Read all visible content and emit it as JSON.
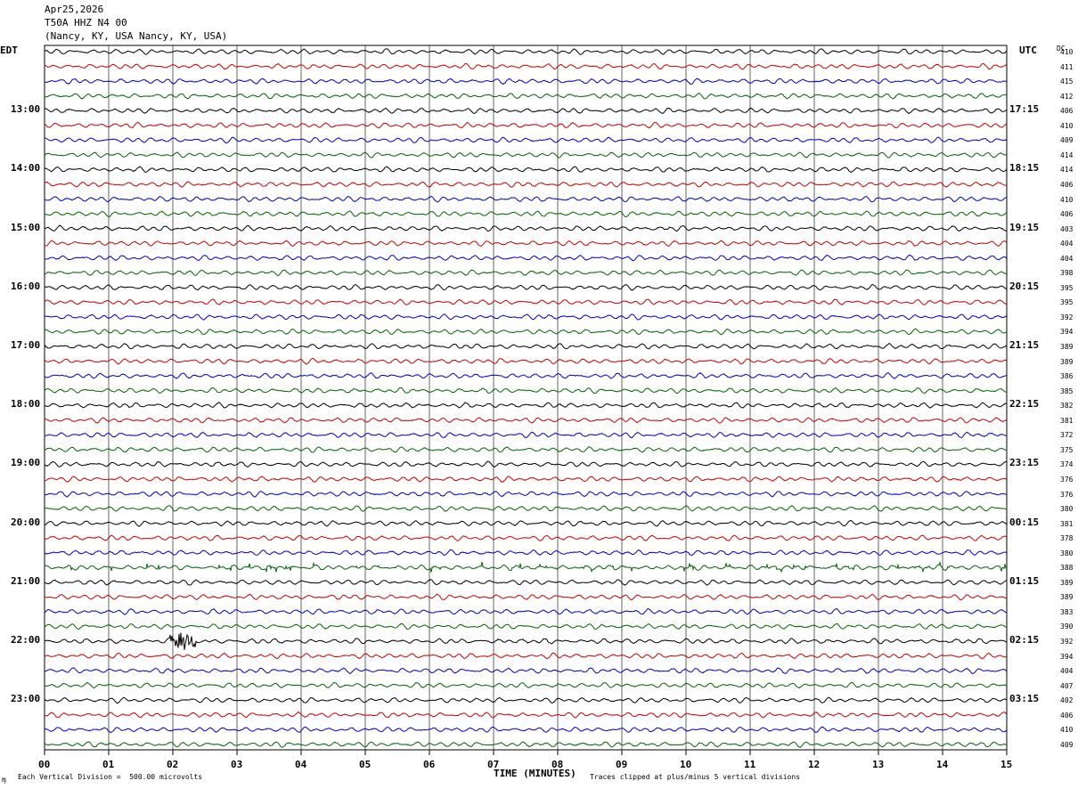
{
  "header": {
    "date": "Apr25,2026",
    "station": "T50A HHZ N4 00",
    "location": "(Nancy, KY, USA Nancy, KY, USA)"
  },
  "left_zone_label": "EDT",
  "right_zone_label": "UTC",
  "dc_header": "DC",
  "edt_labels": [
    "13:00",
    "14:00",
    "15:00",
    "16:00",
    "17:00",
    "18:00",
    "19:00",
    "20:00",
    "21:00",
    "22:00",
    "23:00"
  ],
  "utc_labels": [
    "17:15",
    "18:15",
    "19:15",
    "20:15",
    "21:15",
    "22:15",
    "23:15",
    "00:15",
    "01:15",
    "02:15",
    "03:15"
  ],
  "dc_values": [
    "410",
    "411",
    "415",
    "412",
    "406",
    "410",
    "409",
    "414",
    "414",
    "406",
    "410",
    "406",
    "403",
    "404",
    "404",
    "398",
    "395",
    "395",
    "392",
    "394",
    "389",
    "389",
    "386",
    "385",
    "382",
    "381",
    "372",
    "375",
    "374",
    "376",
    "376",
    "380",
    "381",
    "378",
    "380",
    "388",
    "389",
    "389",
    "383",
    "390",
    "392",
    "394",
    "404",
    "407",
    "402",
    "406",
    "410",
    "409"
  ],
  "trace_colors": [
    "#000000",
    "#cc0000",
    "#0000cc",
    "#006600"
  ],
  "x_ticks": [
    "00",
    "01",
    "02",
    "03",
    "04",
    "05",
    "06",
    "07",
    "08",
    "09",
    "10",
    "11",
    "12",
    "13",
    "14",
    "15"
  ],
  "x_axis_title": "TIME (MINUTES)",
  "footer_left": "Each Vertical Division =  500.00 microvolts",
  "footer_right": "Traces clipped at plus/minus 5 vertical divisions",
  "corner_mark": "ɱ"
}
